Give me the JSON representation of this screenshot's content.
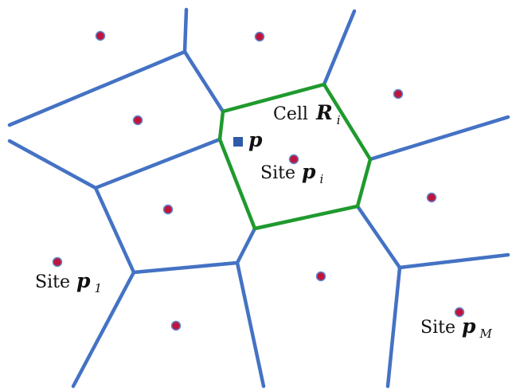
{
  "colors": {
    "edge": "#4472c4",
    "cell_boundary": "#1f9a2e",
    "site_fill": "#c0143c",
    "point_fill": "#2e5aa8",
    "background": "#ffffff"
  },
  "labels": {
    "cell_word": "Cell",
    "cell_symbol": "R",
    "cell_subscript": "i",
    "point_symbol": "p",
    "site_i_word": "Site",
    "site_i_symbol": "p",
    "site_i_subscript": "i",
    "site_1_word": "Site",
    "site_1_symbol": "p",
    "site_1_subscript": "1",
    "site_M_word": "Site",
    "site_M_symbol": "p",
    "site_M_subscript": "M"
  },
  "icons": {
    "site_marker": "red-dot-with-blue-ring",
    "query_point_marker": "blue-square"
  }
}
